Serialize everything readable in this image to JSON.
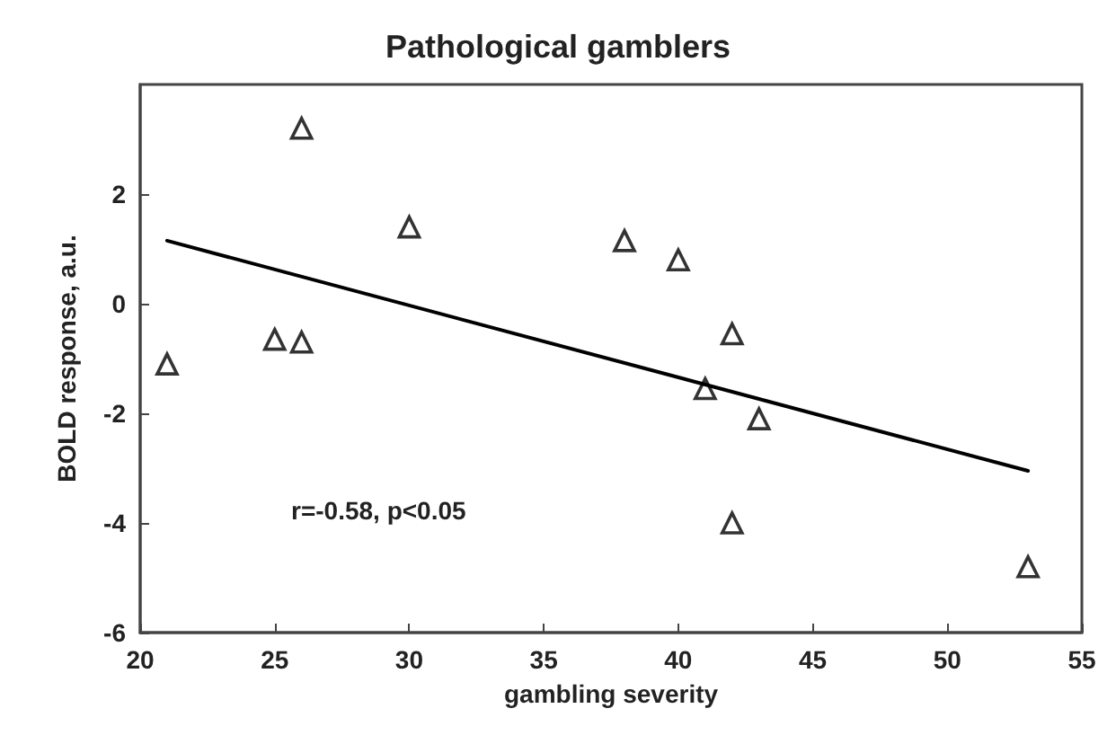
{
  "chart_data": {
    "type": "scatter",
    "title": "Pathological gamblers",
    "xlabel": "gambling severity",
    "ylabel": "BOLD response, a.u.",
    "x": [
      21,
      25,
      26,
      26,
      30,
      38,
      40,
      41,
      42,
      42,
      43,
      53
    ],
    "series": [
      {
        "color": "#000000",
        "marker": "triangle",
        "values": [
          -1.1,
          -0.65,
          -0.7,
          3.2,
          1.4,
          1.15,
          0.8,
          -1.55,
          -0.55,
          -4.0,
          -2.1,
          -4.8
        ]
      },
      {
        "type": "line",
        "color": "#000000",
        "marker": "none",
        "x": [
          21,
          53
        ],
        "values": [
          1.15,
          -3.05
        ]
      }
    ],
    "annotations": [
      "r=-0.58, p<0.05"
    ],
    "xlim": [
      20,
      55
    ],
    "xticks": [
      20,
      25,
      30,
      35,
      40,
      45,
      50,
      55
    ],
    "ylim": [
      -6,
      4
    ],
    "yticks": [
      -6,
      -4,
      -2,
      0,
      2
    ],
    "grid": false
  }
}
